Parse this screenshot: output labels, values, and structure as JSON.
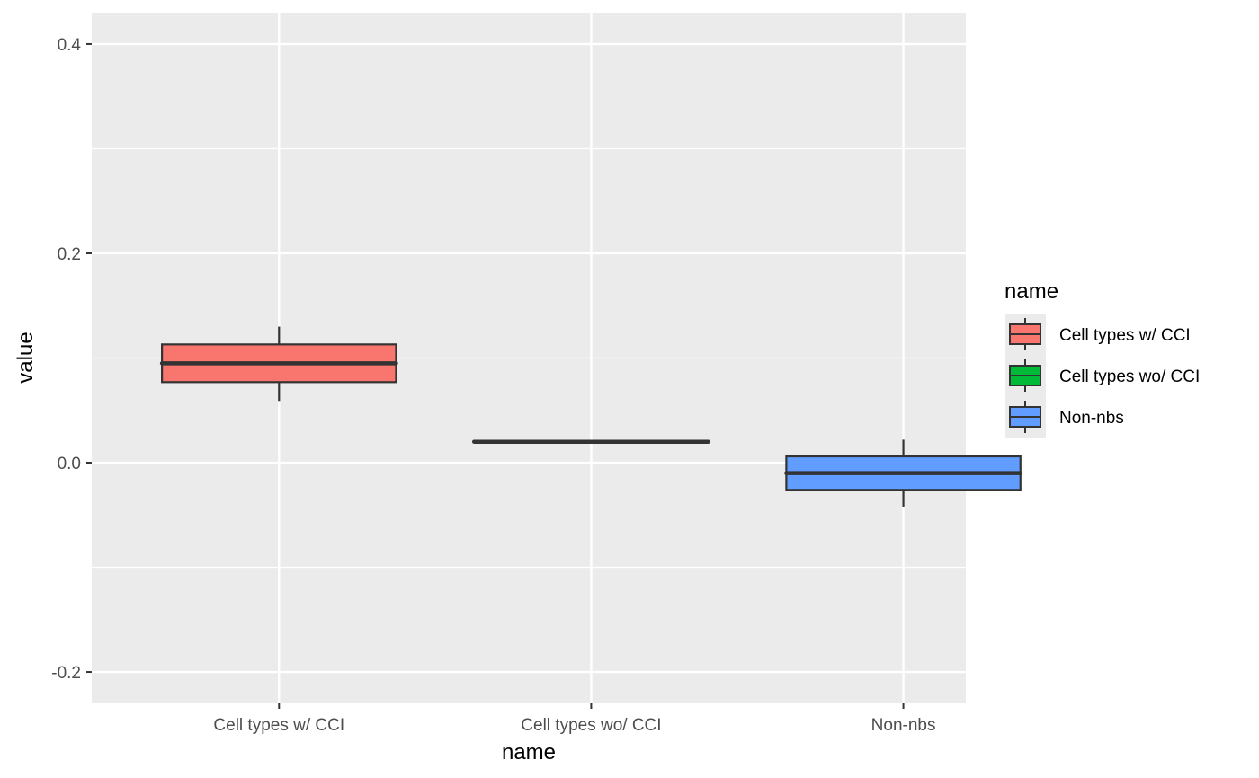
{
  "chart_data": {
    "type": "boxplot",
    "xlabel": "name",
    "ylabel": "value",
    "ylim": [
      -0.23,
      0.43
    ],
    "yticks": [
      "-0.2",
      "0.0",
      "0.2",
      "0.4"
    ],
    "ytick_values": [
      -0.2,
      0.0,
      0.2,
      0.4
    ],
    "categories": [
      "Cell types w/ CCI",
      "Cell types wo/ CCI",
      "Non-nbs"
    ],
    "boxes": [
      {
        "category": "Cell types w/ CCI",
        "whisker_low": 0.059,
        "q1": 0.077,
        "median": 0.095,
        "q3": 0.113,
        "whisker_high": 0.13,
        "color": "#F8766D"
      },
      {
        "category": "Cell types wo/ CCI",
        "whisker_low": 0.02,
        "q1": 0.02,
        "median": 0.02,
        "q3": 0.02,
        "whisker_high": 0.02,
        "color": "#00BA38"
      },
      {
        "category": "Non-nbs",
        "whisker_low": -0.042,
        "q1": -0.026,
        "median": -0.01,
        "q3": 0.006,
        "whisker_high": 0.022,
        "color": "#619CFF"
      }
    ],
    "legend": {
      "title": "name",
      "position": "right",
      "entries": [
        "Cell types w/ CCI",
        "Cell types wo/ CCI",
        "Non-nbs"
      ]
    },
    "grid": true,
    "panel_background": "#EBEBEB",
    "grid_color": "#FFFFFF",
    "box_outline_color": "#333333"
  }
}
